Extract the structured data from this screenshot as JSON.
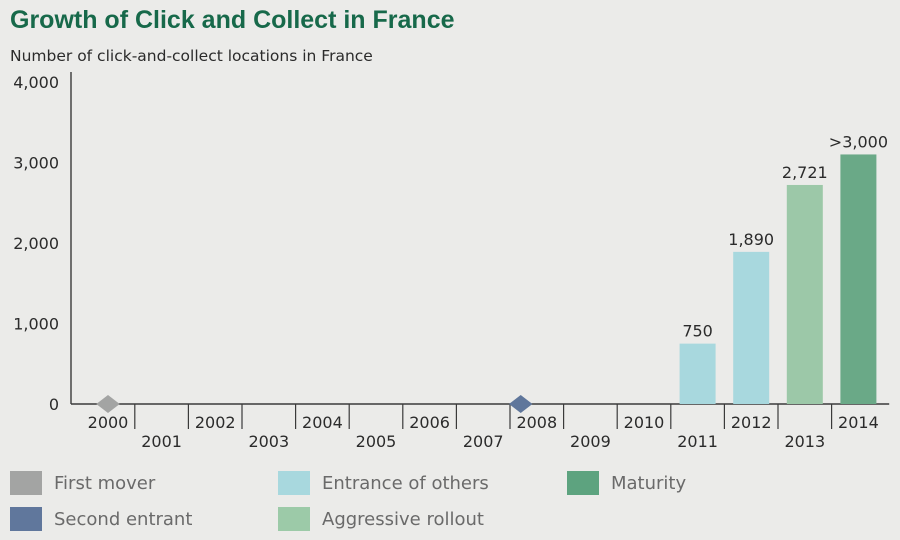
{
  "chart_data": {
    "type": "bar",
    "title": "Growth of Click and Collect in France",
    "subtitle": "Number of click-and-collect locations in France",
    "categories": [
      "2000",
      "2001",
      "2002",
      "2003",
      "2004",
      "2005",
      "2006",
      "2007",
      "2008",
      "2009",
      "2010",
      "2011",
      "2012",
      "2013",
      "2014"
    ],
    "values": [
      null,
      null,
      null,
      null,
      null,
      null,
      null,
      null,
      null,
      null,
      null,
      750,
      1890,
      2721,
      3100
    ],
    "data_labels": {
      "11": "750",
      "12": "1,890",
      "13": "2,721",
      "14": ">3,000"
    },
    "phases": {
      "11": "entrance",
      "12": "entrance",
      "13": "rollout",
      "14": "maturity"
    },
    "markers": [
      {
        "year": 2000,
        "value": 0,
        "phase": "first_mover"
      },
      {
        "year": 2007.7,
        "value": 0,
        "phase": "second_entrant"
      }
    ],
    "ylim": [
      0,
      4000
    ],
    "yticks": [
      0,
      1000,
      2000,
      3000,
      4000
    ],
    "ytick_labels": [
      "0",
      "1,000",
      "2,000",
      "3,000",
      "4,000"
    ],
    "xlabel": "",
    "ylabel": "",
    "grid": false,
    "legend_position": "bottom"
  },
  "legend": {
    "items": [
      {
        "label": "First mover",
        "color": "#a3a4a3"
      },
      {
        "label": "Entrance of others",
        "color": "#a8d8de"
      },
      {
        "label": "Maturity",
        "color": "#5da37f"
      },
      {
        "label": "Second entrant",
        "color": "#60779c"
      },
      {
        "label": "Aggressive rollout",
        "color": "#9ccaa8"
      }
    ]
  },
  "colors": {
    "first_mover": "#a3a4a3",
    "second_entrant": "#5f769b",
    "entrance": "#a8d8de",
    "rollout": "#9cc8a8",
    "maturity": "#6aa987",
    "title": "#17694a"
  }
}
